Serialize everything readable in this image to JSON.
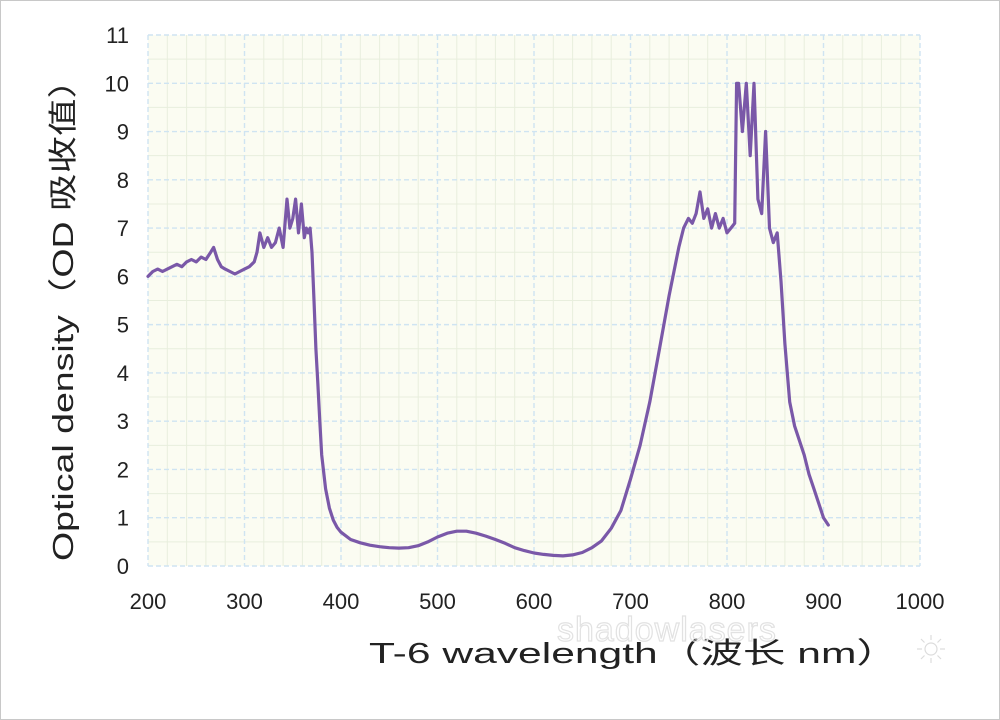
{
  "chart_data": {
    "type": "line",
    "xlabel": "T-6  wavelength（波长 nm）",
    "ylabel": "Optical density（OD 吸收值）",
    "xlim": [
      200,
      1000
    ],
    "ylim": [
      0,
      11
    ],
    "xticks": [
      "200",
      "300",
      "400",
      "500",
      "600",
      "700",
      "800",
      "900",
      "1000"
    ],
    "yticks": [
      "0",
      "1",
      "2",
      "3",
      "4",
      "5",
      "6",
      "7",
      "8",
      "9",
      "10",
      "11"
    ],
    "grid": true,
    "colors": {
      "line": "#7a58a8",
      "grid": "#cfe4f2",
      "plot_bg": "#fbfcf2"
    },
    "series": [
      {
        "x": [
          200,
          205,
          210,
          215,
          220,
          225,
          230,
          235,
          240,
          245,
          250,
          255,
          260,
          265,
          268,
          272,
          276,
          280,
          285,
          290,
          295,
          300,
          305,
          310,
          313,
          316,
          320,
          324,
          328,
          332,
          336,
          340,
          344,
          347,
          350,
          353,
          356,
          359,
          362,
          364,
          366,
          368,
          370,
          372,
          374,
          376,
          378,
          380,
          384,
          388,
          392,
          396,
          400,
          410,
          420,
          430,
          440,
          450,
          460,
          470,
          480,
          490,
          500,
          510,
          520,
          530,
          540,
          550,
          560,
          570,
          580,
          590,
          600,
          610,
          620,
          630,
          640,
          650,
          660,
          670,
          680,
          690,
          700,
          710,
          720,
          730,
          740,
          750,
          755,
          760,
          764,
          768,
          772,
          776,
          780,
          784,
          788,
          792,
          796,
          800,
          804,
          808,
          810,
          812,
          816,
          820,
          824,
          828,
          832,
          836,
          840,
          844,
          848,
          852,
          856,
          860,
          865,
          870,
          875,
          880,
          885,
          890,
          895,
          900,
          905
        ],
        "values": [
          6.0,
          6.1,
          6.15,
          6.1,
          6.15,
          6.2,
          6.25,
          6.2,
          6.3,
          6.35,
          6.3,
          6.4,
          6.35,
          6.5,
          6.6,
          6.35,
          6.2,
          6.15,
          6.1,
          6.05,
          6.1,
          6.15,
          6.2,
          6.3,
          6.5,
          6.9,
          6.6,
          6.8,
          6.6,
          6.7,
          7.0,
          6.6,
          7.6,
          7.0,
          7.2,
          7.6,
          6.9,
          7.5,
          6.8,
          7.0,
          6.9,
          7.0,
          6.5,
          5.5,
          4.5,
          3.8,
          3.0,
          2.3,
          1.6,
          1.2,
          0.95,
          0.8,
          0.7,
          0.55,
          0.48,
          0.43,
          0.4,
          0.38,
          0.37,
          0.38,
          0.42,
          0.5,
          0.6,
          0.68,
          0.72,
          0.72,
          0.68,
          0.62,
          0.55,
          0.47,
          0.38,
          0.32,
          0.27,
          0.24,
          0.22,
          0.21,
          0.23,
          0.28,
          0.38,
          0.52,
          0.78,
          1.15,
          1.8,
          2.5,
          3.4,
          4.5,
          5.6,
          6.6,
          7.0,
          7.2,
          7.1,
          7.3,
          7.75,
          7.2,
          7.4,
          7.0,
          7.3,
          7.0,
          7.2,
          6.9,
          7.0,
          7.1,
          10.0,
          10.0,
          9.0,
          10.0,
          8.5,
          10.0,
          7.6,
          7.3,
          9.0,
          7.0,
          6.7,
          6.9,
          5.9,
          4.6,
          3.4,
          2.9,
          2.6,
          2.3,
          1.9,
          1.6,
          1.3,
          1.0,
          0.85
        ]
      }
    ]
  },
  "watermark": "shadowlasers"
}
